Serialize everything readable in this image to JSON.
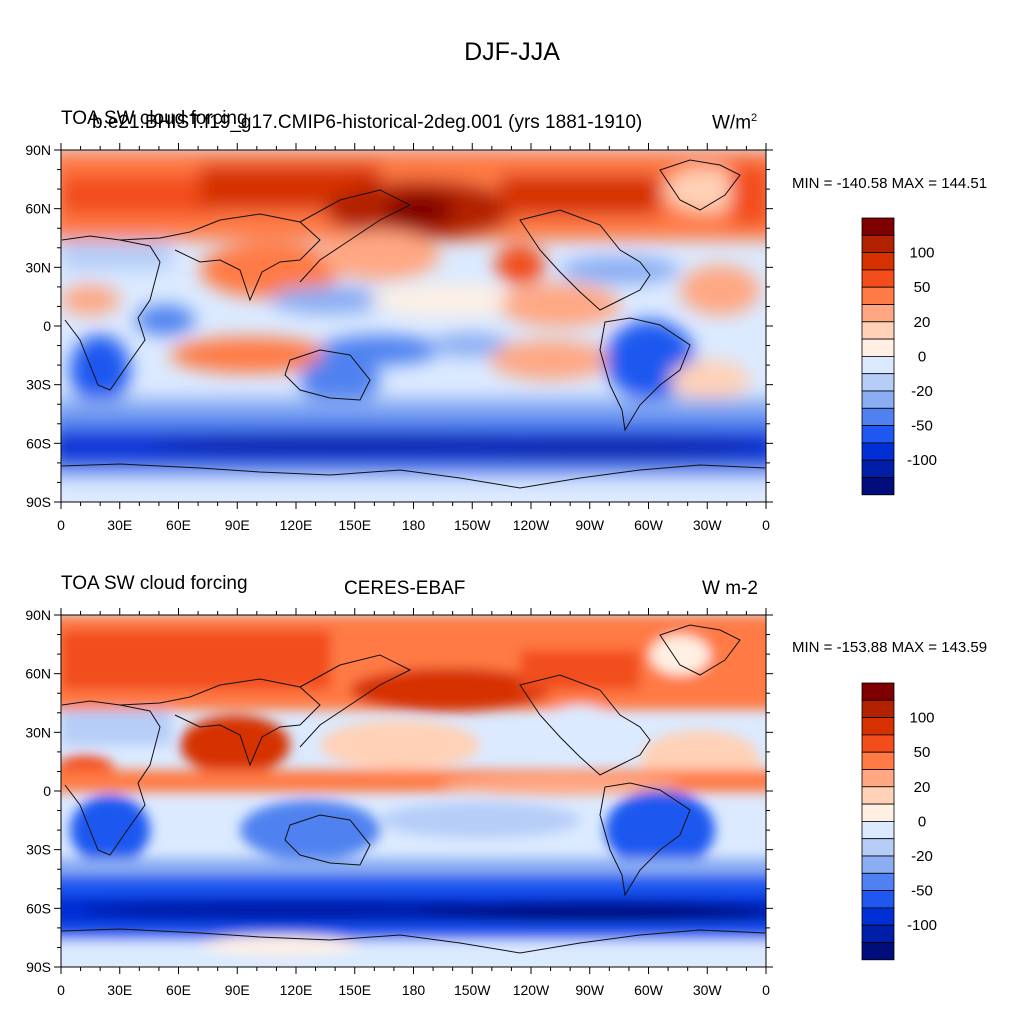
{
  "title": "DJF-JJA",
  "panels": [
    {
      "left_title": "TOA SW cloud forcing",
      "center_title": "b.e21.BHIST.f19_g17.CMIP6-historical-2deg.001 (yrs 1881-1910)",
      "units": "W/m",
      "units_sup": "2",
      "minmax": "MIN = -140.58 MAX = 144.51"
    },
    {
      "left_title": "TOA SW cloud forcing",
      "center_title": "CERES-EBAF",
      "units": "W m-2",
      "units_sup": "",
      "minmax": "MIN = -153.88 MAX = 143.59"
    }
  ],
  "lat_labels": [
    "90N",
    "60N",
    "30N",
    "0",
    "30S",
    "60S",
    "90S"
  ],
  "lon_labels": [
    "0",
    "30E",
    "60E",
    "90E",
    "120E",
    "150E",
    "180",
    "150W",
    "120W",
    "90W",
    "60W",
    "30W",
    "0"
  ],
  "colorbar": {
    "colors": [
      "#7f0000",
      "#b22100",
      "#d63100",
      "#f24d1a",
      "#ff7a45",
      "#ffa783",
      "#ffd1b7",
      "#fff0e3",
      "#dbeaff",
      "#b6cdf8",
      "#8aadf3",
      "#4f82f0",
      "#1e58f0",
      "#002fd6",
      "#001fa8",
      "#000d7a"
    ],
    "labels": [
      "100",
      "50",
      "20",
      "0",
      "-20",
      "-50",
      "-100"
    ]
  }
}
